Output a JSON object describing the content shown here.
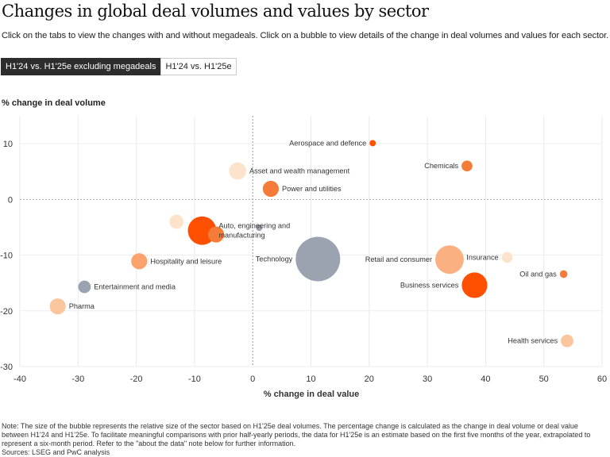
{
  "title": "Changes in global deal volumes and values by sector",
  "subtitle": "Click on the tabs to view the changes with and without megadeals. Click on a bubble to view details of the change in deal volumes and values for each sector.",
  "tabs": [
    {
      "label": "H1'24 vs. H1'25e excluding megadeals",
      "active": true
    },
    {
      "label": "H1'24 vs. H1'25e",
      "active": false
    }
  ],
  "note": "Note: The size of the bubble represents the relative size of the sector based on H1'25e deal volumes. The percentage change is calculated as the change in deal volume or deal value between H1'24 and H1'25e. To facilitate meaningful comparisons with prior half-yearly periods, the data for H1'25e is an estimate based on the first five months of the year, extrapolated to represent a six-month period. Refer to the \"about the data\" note below for further information.",
  "sources": "Sources: LSEG and PwC analysis",
  "chart_data": {
    "type": "scatter",
    "xlabel": "% change in deal value",
    "ylabel": "% change in deal volume",
    "xlim": [
      -40,
      60
    ],
    "ylim": [
      -30,
      15
    ],
    "xticks": [
      -40,
      -30,
      -20,
      -10,
      0,
      10,
      20,
      30,
      40,
      50,
      60
    ],
    "yticks": [
      10,
      0,
      -10,
      -20,
      -30
    ],
    "grid": true,
    "points": [
      {
        "name": "Aerospace and defence",
        "x": 20.6,
        "y": 10.1,
        "size": 2,
        "color": "#fe5000",
        "label_position": "left"
      },
      {
        "name": "Chemicals",
        "x": 36.8,
        "y": 6.0,
        "size": 6,
        "color": "#f47b38",
        "label_position": "left"
      },
      {
        "name": "Asset and wealth management",
        "x": -2.6,
        "y": 5.1,
        "size": 15,
        "color": "#fde3cc",
        "label_position": "right"
      },
      {
        "name": "Power and utilities",
        "x": 3.1,
        "y": 1.9,
        "size": 13,
        "color": "#f47b38",
        "label_position": "right"
      },
      {
        "name": "",
        "x": -13.1,
        "y": -4.0,
        "size": 10,
        "color": "#fde3cc",
        "label_position": "right"
      },
      {
        "name": "Auto, engineering and manufacturing",
        "x": -8.7,
        "y": -5.6,
        "size": 41,
        "color": "#fe5000",
        "label_position": "right"
      },
      {
        "name": "",
        "x": -6.3,
        "y": -6.3,
        "size": 13,
        "color": "#f47b38",
        "label_position": "right"
      },
      {
        "name": "",
        "x": 1.1,
        "y": -5.1,
        "size": 2,
        "color": "#9ba3b0",
        "label_position": "right"
      },
      {
        "name": "Technology",
        "x": 11.2,
        "y": -10.7,
        "size": 100,
        "color": "#9ba3b0",
        "label_position": "left"
      },
      {
        "name": "Hospitality and leisure",
        "x": -19.5,
        "y": -11.1,
        "size": 13,
        "color": "#fba26d",
        "label_position": "right"
      },
      {
        "name": "Retail and consumer",
        "x": 33.8,
        "y": -10.8,
        "size": 41,
        "color": "#fbb081",
        "label_position": "left"
      },
      {
        "name": "Insurance",
        "x": 43.7,
        "y": -10.4,
        "size": 6,
        "color": "#fde3cc",
        "label_position": "left"
      },
      {
        "name": "Oil and gas",
        "x": 53.4,
        "y": -13.4,
        "size": 3,
        "color": "#f47b38",
        "label_position": "left"
      },
      {
        "name": "Business services",
        "x": 38.1,
        "y": -15.4,
        "size": 33,
        "color": "#fe5000",
        "label_position": "left"
      },
      {
        "name": "Entertainment and media",
        "x": -28.9,
        "y": -15.7,
        "size": 8,
        "color": "#9ba3b0",
        "label_position": "right"
      },
      {
        "name": "Pharma",
        "x": -33.5,
        "y": -19.2,
        "size": 13,
        "color": "#fbc59e",
        "label_position": "right"
      },
      {
        "name": "Health services",
        "x": 54.0,
        "y": -25.4,
        "size": 8,
        "color": "#fbc59e",
        "label_position": "left"
      }
    ]
  }
}
